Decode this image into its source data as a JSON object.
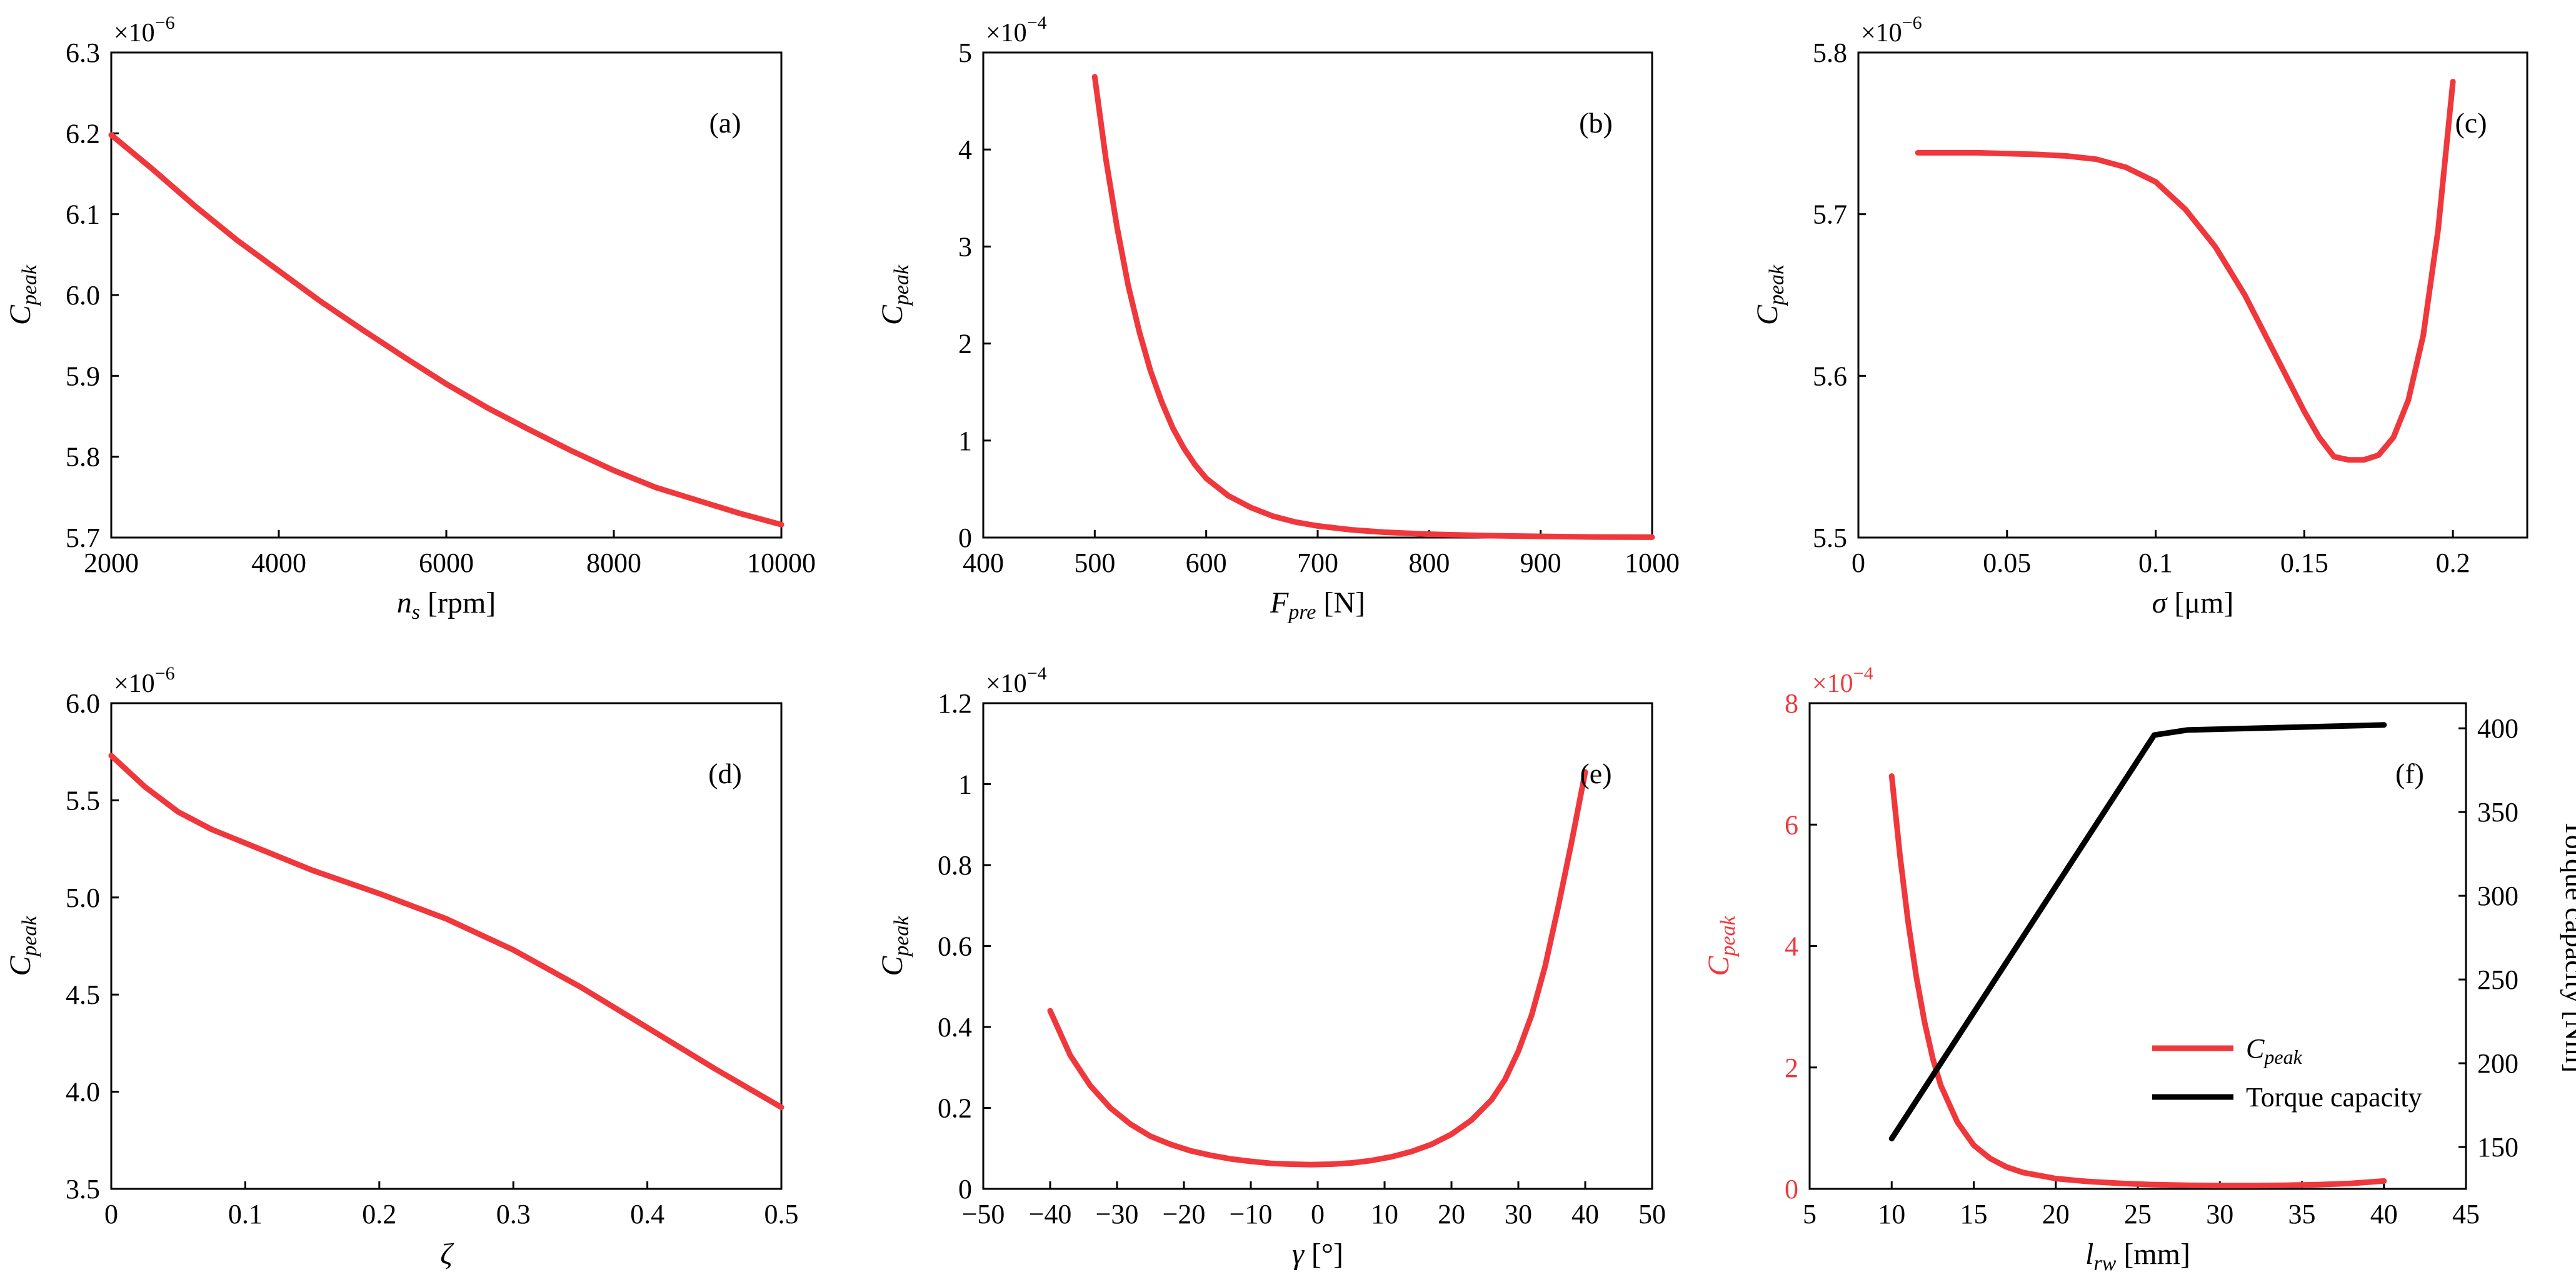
{
  "figure": {
    "panels": [
      "a",
      "b",
      "c",
      "d",
      "e",
      "f"
    ]
  },
  "colors": {
    "series": "#f0373c",
    "axis": "#000000",
    "torque": "#000000",
    "background": "#ffffff"
  },
  "chart_data": [
    {
      "id": "a",
      "type": "line",
      "panel_label": "(a)",
      "ylabel_main": "C",
      "ylabel_sub": "peak",
      "exponent": "×10",
      "exponent_power": "−6",
      "xlabel_main": "n",
      "xlabel_sub": "s",
      "xlabel_unit": " [rpm]",
      "xlabel_italic_main": true,
      "xlim": [
        2000,
        10000
      ],
      "ylim": [
        5.7,
        6.3
      ],
      "xticks": [
        2000,
        4000,
        6000,
        8000,
        10000
      ],
      "xtick_labels": [
        "2000",
        "4000",
        "6000",
        "8000",
        "10000"
      ],
      "yticks": [
        5.7,
        5.8,
        5.9,
        6.0,
        6.1,
        6.2,
        6.3
      ],
      "ytick_labels": [
        "5.7",
        "5.8",
        "5.9",
        "6.0",
        "6.1",
        "6.2",
        "6.3"
      ],
      "series": [
        {
          "name": "C_peak",
          "color_key": "series",
          "x": [
            2000,
            2500,
            3000,
            3500,
            4000,
            4500,
            5000,
            5500,
            6000,
            6500,
            7000,
            7500,
            8000,
            8500,
            9000,
            9500,
            10000
          ],
          "y": [
            6.198,
            6.155,
            6.11,
            6.068,
            6.03,
            5.992,
            5.957,
            5.923,
            5.89,
            5.86,
            5.833,
            5.807,
            5.783,
            5.762,
            5.746,
            5.73,
            5.716
          ]
        }
      ]
    },
    {
      "id": "b",
      "type": "line",
      "panel_label": "(b)",
      "ylabel_main": "C",
      "ylabel_sub": "peak",
      "exponent": "×10",
      "exponent_power": "−4",
      "xlabel_main": "F",
      "xlabel_sub": "pre",
      "xlabel_unit": " [N]",
      "xlabel_italic_main": true,
      "xlim": [
        400,
        1000
      ],
      "ylim": [
        0,
        5
      ],
      "xticks": [
        400,
        500,
        600,
        700,
        800,
        900,
        1000
      ],
      "xtick_labels": [
        "400",
        "500",
        "600",
        "700",
        "800",
        "900",
        "1000"
      ],
      "yticks": [
        0,
        1,
        2,
        3,
        4,
        5
      ],
      "ytick_labels": [
        "0",
        "1",
        "2",
        "3",
        "4",
        "5"
      ],
      "series": [
        {
          "name": "C_peak",
          "color_key": "series",
          "x": [
            500,
            510,
            520,
            530,
            540,
            550,
            560,
            570,
            580,
            590,
            600,
            620,
            640,
            660,
            680,
            700,
            730,
            760,
            800,
            850,
            900,
            950,
            1000
          ],
          "y": [
            4.75,
            3.9,
            3.2,
            2.6,
            2.12,
            1.72,
            1.4,
            1.13,
            0.92,
            0.75,
            0.61,
            0.43,
            0.31,
            0.22,
            0.16,
            0.12,
            0.08,
            0.055,
            0.035,
            0.02,
            0.012,
            0.006,
            0.004
          ]
        }
      ]
    },
    {
      "id": "c",
      "type": "line",
      "panel_label": "(c)",
      "ylabel_main": "C",
      "ylabel_sub": "peak",
      "exponent": "×10",
      "exponent_power": "−6",
      "xlabel_main": "σ",
      "xlabel_sub": "",
      "xlabel_unit": " [μm]",
      "xlabel_italic_main": true,
      "xlim": [
        0,
        0.225
      ],
      "ylim": [
        5.5,
        5.8
      ],
      "xticks": [
        0,
        0.05,
        0.1,
        0.15,
        0.2
      ],
      "xtick_labels": [
        "0",
        "0.05",
        "0.1",
        "0.15",
        "0.2"
      ],
      "yticks": [
        5.5,
        5.6,
        5.7,
        5.8
      ],
      "ytick_labels": [
        "5.5",
        "5.6",
        "5.7",
        "5.8"
      ],
      "series": [
        {
          "name": "C_peak",
          "color_key": "series",
          "x": [
            0.02,
            0.04,
            0.06,
            0.07,
            0.08,
            0.09,
            0.1,
            0.11,
            0.12,
            0.13,
            0.14,
            0.15,
            0.155,
            0.16,
            0.165,
            0.17,
            0.175,
            0.18,
            0.185,
            0.19,
            0.195,
            0.2
          ],
          "y": [
            5.738,
            5.738,
            5.737,
            5.736,
            5.734,
            5.729,
            5.72,
            5.703,
            5.68,
            5.65,
            5.614,
            5.578,
            5.562,
            5.55,
            5.548,
            5.548,
            5.551,
            5.562,
            5.585,
            5.625,
            5.69,
            5.782
          ]
        }
      ]
    },
    {
      "id": "d",
      "type": "line",
      "panel_label": "(d)",
      "ylabel_main": "C",
      "ylabel_sub": "peak",
      "exponent": "×10",
      "exponent_power": "−6",
      "xlabel_main": "ζ",
      "xlabel_sub": "",
      "xlabel_unit": "",
      "xlabel_italic_main": true,
      "xlim": [
        0,
        0.5
      ],
      "ylim": [
        3.5,
        6.0
      ],
      "xticks": [
        0,
        0.1,
        0.2,
        0.3,
        0.4,
        0.5
      ],
      "xtick_labels": [
        "0",
        "0.1",
        "0.2",
        "0.3",
        "0.4",
        "0.5"
      ],
      "yticks": [
        3.5,
        4.0,
        4.5,
        5.0,
        5.5,
        6.0
      ],
      "ytick_labels": [
        "3.5",
        "4.0",
        "4.5",
        "5.0",
        "5.5",
        "6.0"
      ],
      "series": [
        {
          "name": "C_peak",
          "color_key": "series",
          "x": [
            0,
            0.025,
            0.05,
            0.075,
            0.1,
            0.15,
            0.2,
            0.25,
            0.3,
            0.35,
            0.4,
            0.45,
            0.5
          ],
          "y": [
            5.73,
            5.57,
            5.44,
            5.35,
            5.28,
            5.14,
            5.02,
            4.89,
            4.73,
            4.54,
            4.33,
            4.12,
            3.92
          ]
        }
      ]
    },
    {
      "id": "e",
      "type": "line",
      "panel_label": "(e)",
      "ylabel_main": "C",
      "ylabel_sub": "peak",
      "exponent": "×10",
      "exponent_power": "−4",
      "xlabel_main": "γ",
      "xlabel_sub": "",
      "xlabel_unit": " [°]",
      "xlabel_italic_main": true,
      "xlim": [
        -50,
        50
      ],
      "ylim": [
        0,
        1.2
      ],
      "xticks": [
        -50,
        -40,
        -30,
        -20,
        -10,
        0,
        10,
        20,
        30,
        40,
        50
      ],
      "xtick_labels": [
        "−50",
        "−40",
        "−30",
        "−20",
        "−10",
        "0",
        "10",
        "20",
        "30",
        "40",
        "50"
      ],
      "yticks": [
        0,
        0.2,
        0.4,
        0.6,
        0.8,
        1.0,
        1.2
      ],
      "ytick_labels": [
        "0",
        "0.2",
        "0.4",
        "0.6",
        "0.8",
        "1",
        "1.2"
      ],
      "series": [
        {
          "name": "C_peak",
          "color_key": "series",
          "x": [
            -40,
            -37,
            -34,
            -31,
            -28,
            -25,
            -22,
            -19,
            -16,
            -13,
            -10,
            -7,
            -4,
            -1,
            2,
            5,
            8,
            11,
            14,
            17,
            20,
            23,
            26,
            28,
            30,
            32,
            34,
            36,
            38,
            40
          ],
          "y": [
            0.44,
            0.33,
            0.255,
            0.2,
            0.16,
            0.13,
            0.11,
            0.094,
            0.083,
            0.074,
            0.068,
            0.063,
            0.061,
            0.06,
            0.061,
            0.064,
            0.07,
            0.079,
            0.092,
            0.11,
            0.135,
            0.17,
            0.22,
            0.27,
            0.34,
            0.43,
            0.55,
            0.7,
            0.86,
            1.03
          ]
        }
      ]
    },
    {
      "id": "f",
      "type": "line",
      "panel_label": "(f)",
      "dual_axis": true,
      "ylabel_main": "C",
      "ylabel_sub": "peak",
      "exponent": "×10",
      "exponent_power": "−4",
      "ylabel_right": "Torque capacity [Nm]",
      "xlabel_main": "l",
      "xlabel_sub": "rw",
      "xlabel_unit": " [mm]",
      "xlabel_italic_main": true,
      "xlim": [
        5,
        45
      ],
      "ylim": [
        0,
        8
      ],
      "ylim_right": [
        125,
        415
      ],
      "xticks": [
        5,
        10,
        15,
        20,
        25,
        30,
        35,
        40,
        45
      ],
      "xtick_labels": [
        "5",
        "10",
        "15",
        "20",
        "25",
        "30",
        "35",
        "40",
        "45"
      ],
      "yticks": [
        0,
        2,
        4,
        6,
        8
      ],
      "ytick_labels": [
        "0",
        "2",
        "4",
        "6",
        "8"
      ],
      "yticks_right": [
        150,
        200,
        250,
        300,
        350,
        400
      ],
      "ytick_labels_right": [
        "150",
        "200",
        "250",
        "300",
        "350",
        "400"
      ],
      "legend": {
        "placement": "lower-right",
        "entries": [
          {
            "label_main": "C",
            "label_sub": "peak",
            "color_key": "series"
          },
          {
            "label_main": "Torque capacity",
            "label_sub": "",
            "color_key": "torque"
          }
        ]
      },
      "series": [
        {
          "name": "C_peak",
          "color_key": "series",
          "axis": "left",
          "x": [
            10,
            10.5,
            11,
            11.5,
            12,
            12.5,
            13,
            14,
            15,
            16,
            17,
            18,
            20,
            22,
            24,
            26,
            28,
            30,
            32,
            34,
            36,
            38,
            40
          ],
          "y": [
            6.8,
            5.5,
            4.4,
            3.5,
            2.75,
            2.15,
            1.7,
            1.1,
            0.72,
            0.5,
            0.36,
            0.27,
            0.17,
            0.12,
            0.09,
            0.07,
            0.06,
            0.055,
            0.055,
            0.06,
            0.07,
            0.09,
            0.13
          ]
        },
        {
          "name": "Torque capacity",
          "color_key": "torque",
          "axis": "right",
          "x": [
            10,
            26,
            28,
            40
          ],
          "y": [
            155,
            396,
            399,
            402
          ]
        }
      ]
    }
  ]
}
